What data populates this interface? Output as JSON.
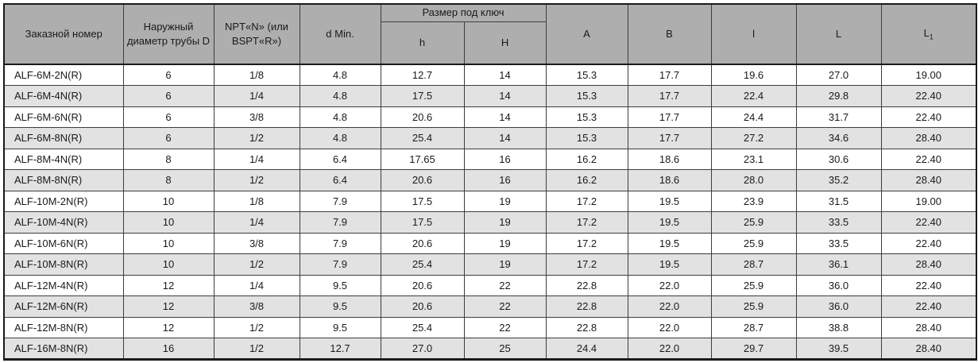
{
  "colors": {
    "header_bg": "#aeaeae",
    "stripe_bg": "#e2e2e2",
    "row_bg": "#ffffff",
    "border_inner": "#3d3d3d",
    "border_outer": "#1a1a1a"
  },
  "table": {
    "headers": {
      "order_number": "Заказной номер",
      "outer_diameter": "Наружный диаметр трубы D",
      "npt": "NPT«N» (или BSPT«R»)",
      "d_min": "d Min.",
      "wrench_size_group": "Размер под ключ",
      "h_small": "h",
      "h_big": "H",
      "a": "A",
      "b": "B",
      "l_small": "l",
      "l_big": "L",
      "l1_base": "L",
      "l1_sub": "1"
    },
    "rows": [
      [
        "ALF-6M-2N(R)",
        "6",
        "1/8",
        "4.8",
        "12.7",
        "14",
        "15.3",
        "17.7",
        "19.6",
        "27.0",
        "19.00"
      ],
      [
        "ALF-6M-4N(R)",
        "6",
        "1/4",
        "4.8",
        "17.5",
        "14",
        "15.3",
        "17.7",
        "22.4",
        "29.8",
        "22.40"
      ],
      [
        "ALF-6M-6N(R)",
        "6",
        "3/8",
        "4.8",
        "20.6",
        "14",
        "15.3",
        "17.7",
        "24.4",
        "31.7",
        "22.40"
      ],
      [
        "ALF-6M-8N(R)",
        "6",
        "1/2",
        "4.8",
        "25.4",
        "14",
        "15.3",
        "17.7",
        "27.2",
        "34.6",
        "28.40"
      ],
      [
        "ALF-8M-4N(R)",
        "8",
        "1/4",
        "6.4",
        "17.65",
        "16",
        "16.2",
        "18.6",
        "23.1",
        "30.6",
        "22.40"
      ],
      [
        "ALF-8M-8N(R)",
        "8",
        "1/2",
        "6.4",
        "20.6",
        "16",
        "16.2",
        "18.6",
        "28.0",
        "35.2",
        "28.40"
      ],
      [
        "ALF-10M-2N(R)",
        "10",
        "1/8",
        "7.9",
        "17.5",
        "19",
        "17.2",
        "19.5",
        "23.9",
        "31.5",
        "19.00"
      ],
      [
        "ALF-10M-4N(R)",
        "10",
        "1/4",
        "7.9",
        "17.5",
        "19",
        "17.2",
        "19.5",
        "25.9",
        "33.5",
        "22.40"
      ],
      [
        "ALF-10M-6N(R)",
        "10",
        "3/8",
        "7.9",
        "20.6",
        "19",
        "17.2",
        "19.5",
        "25.9",
        "33.5",
        "22.40"
      ],
      [
        "ALF-10M-8N(R)",
        "10",
        "1/2",
        "7.9",
        "25.4",
        "19",
        "17.2",
        "19.5",
        "28.7",
        "36.1",
        "28.40"
      ],
      [
        "ALF-12M-4N(R)",
        "12",
        "1/4",
        "9.5",
        "20.6",
        "22",
        "22.8",
        "22.0",
        "25.9",
        "36.0",
        "22.40"
      ],
      [
        "ALF-12M-6N(R)",
        "12",
        "3/8",
        "9.5",
        "20.6",
        "22",
        "22.8",
        "22.0",
        "25.9",
        "36.0",
        "22.40"
      ],
      [
        "ALF-12M-8N(R)",
        "12",
        "1/2",
        "9.5",
        "25.4",
        "22",
        "22.8",
        "22.0",
        "28.7",
        "38.8",
        "28.40"
      ],
      [
        "ALF-16M-8N(R)",
        "16",
        "1/2",
        "12.7",
        "27.0",
        "25",
        "24.4",
        "22.0",
        "29.7",
        "39.5",
        "28.40"
      ]
    ]
  }
}
